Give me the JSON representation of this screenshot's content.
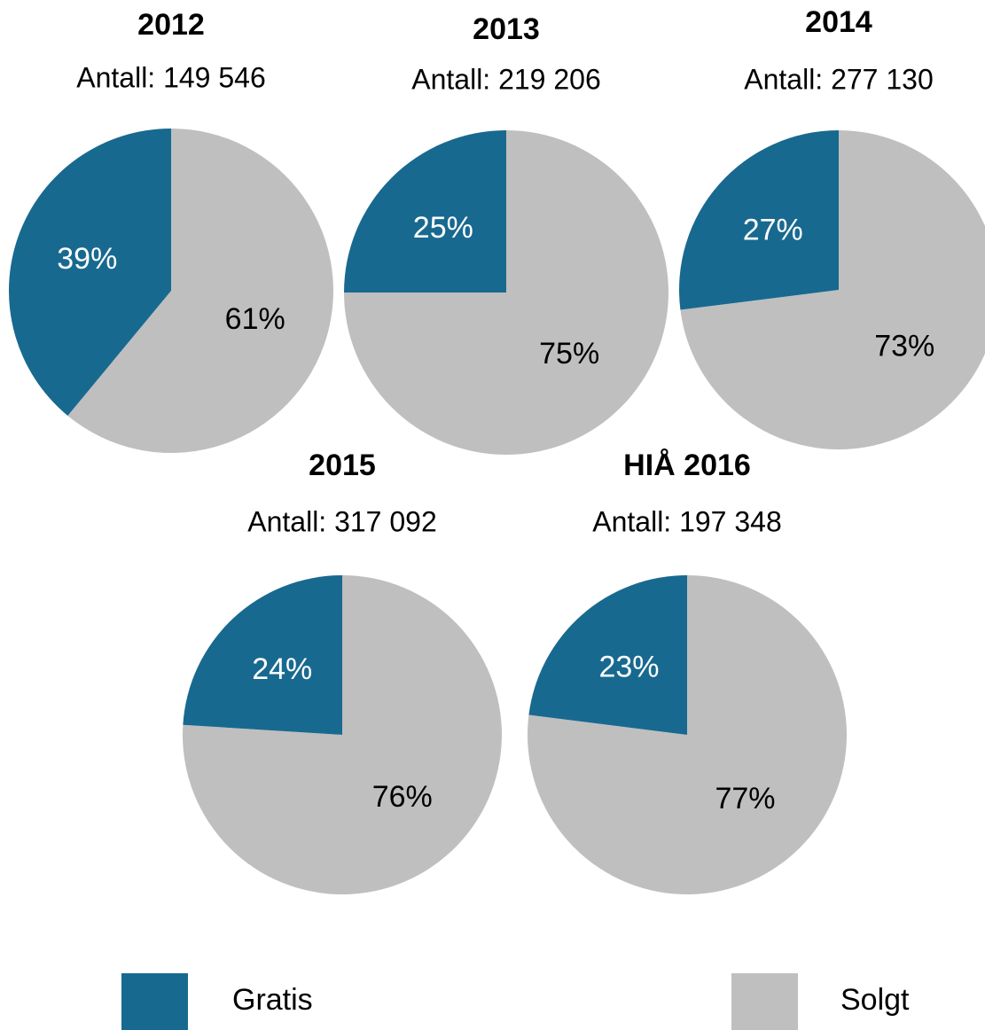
{
  "chart_data": [
    {
      "type": "pie",
      "title": "2012",
      "subtitle": "Antall: 149 546",
      "categories": [
        "Gratis",
        "Solgt"
      ],
      "values": [
        39,
        61
      ],
      "value_labels": [
        "39%",
        "61%"
      ],
      "colors": [
        "#18698f",
        "#bfbfbf"
      ]
    },
    {
      "type": "pie",
      "title": "2013",
      "subtitle": "Antall: 219 206",
      "categories": [
        "Gratis",
        "Solgt"
      ],
      "values": [
        25,
        75
      ],
      "value_labels": [
        "25%",
        "75%"
      ],
      "colors": [
        "#18698f",
        "#bfbfbf"
      ]
    },
    {
      "type": "pie",
      "title": "2014",
      "subtitle": "Antall: 277 130",
      "categories": [
        "Gratis",
        "Solgt"
      ],
      "values": [
        27,
        73
      ],
      "value_labels": [
        "27%",
        "73%"
      ],
      "colors": [
        "#18698f",
        "#bfbfbf"
      ]
    },
    {
      "type": "pie",
      "title": "2015",
      "subtitle": "Antall: 317 092",
      "categories": [
        "Gratis",
        "Solgt"
      ],
      "values": [
        24,
        76
      ],
      "value_labels": [
        "24%",
        "76%"
      ],
      "colors": [
        "#18698f",
        "#bfbfbf"
      ]
    },
    {
      "type": "pie",
      "title": "HIÅ 2016",
      "subtitle": "Antall: 197 348",
      "categories": [
        "Gratis",
        "Solgt"
      ],
      "values": [
        23,
        77
      ],
      "value_labels": [
        "23%",
        "77%"
      ],
      "colors": [
        "#18698f",
        "#bfbfbf"
      ]
    }
  ]
}
